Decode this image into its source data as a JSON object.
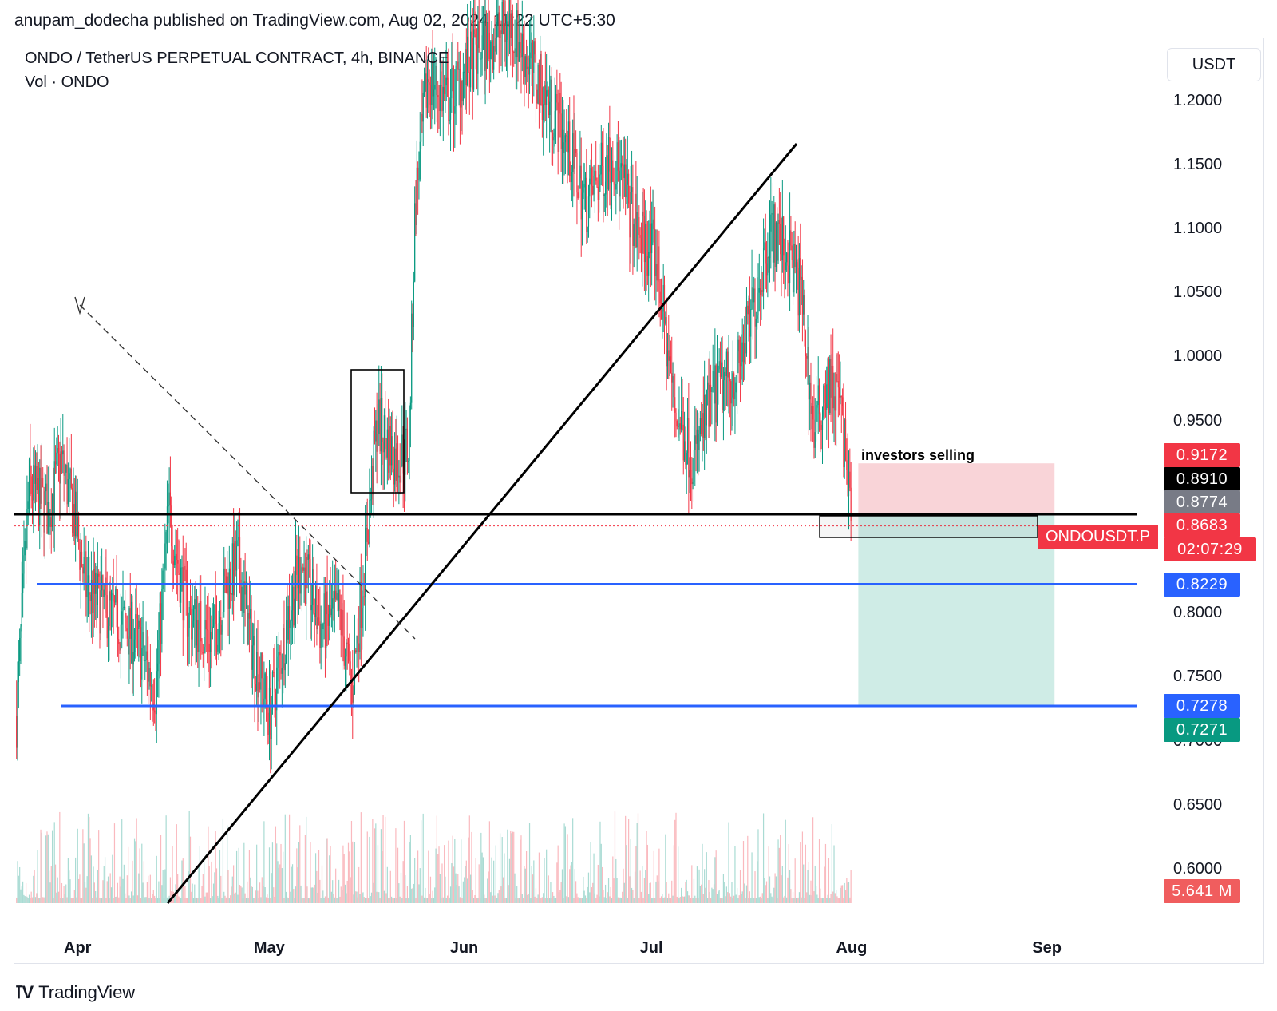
{
  "header": {
    "publish_line": "anupam_dodecha published on TradingView.com, Aug 02, 2024 11:22 UTC+5:30"
  },
  "legend": {
    "symbol_line": "ONDO / TetherUS PERPETUAL CONTRACT, 4h, BINANCE",
    "volume_line": "Vol · ONDO"
  },
  "currency_button": "USDT",
  "annotation": "investors selling",
  "symbol_tag": "ONDOUSDT.P",
  "footer": {
    "brand": "TradingView"
  },
  "colors": {
    "up": "#089981",
    "down": "#f23645",
    "level_blue": "#2962ff",
    "stop_zone": "#f7c5cb",
    "target_zone": "#bfe6dd"
  },
  "chart_data": {
    "type": "candlestick",
    "title": "ONDO / TetherUS PERPETUAL CONTRACT, 4h, BINANCE",
    "x_ticks": [
      "Apr",
      "May",
      "Jun",
      "Jul",
      "Aug",
      "Sep"
    ],
    "y_ticks": [
      1.2,
      1.15,
      1.1,
      1.05,
      1.0,
      0.95,
      0.8,
      0.75,
      0.7,
      0.65,
      0.6
    ],
    "y_tick_labels": [
      "1.2000",
      "1.1500",
      "1.1000",
      "1.0500",
      "1.0000",
      "0.9500",
      "0.8000",
      "0.7500",
      "0.7000",
      "0.6500",
      "0.6000"
    ],
    "ylim": [
      0.575,
      1.25
    ],
    "scale_labels": [
      {
        "text": "0.9172",
        "color": "#f23645"
      },
      {
        "text": "0.8910",
        "color": "#000000"
      },
      {
        "text": "0.8774",
        "color": "#787b86"
      },
      {
        "text": "0.8683",
        "color": "#f23645",
        "countdown": "02:07:29"
      },
      {
        "text": "0.8229",
        "color": "#2962ff"
      },
      {
        "text": "0.7278",
        "color": "#2962ff"
      },
      {
        "text": "0.7271",
        "color": "#089981"
      },
      {
        "text": "5.641 M",
        "color": "#f05d5e"
      }
    ],
    "horizontal_levels": [
      0.8774,
      0.8229,
      0.7278
    ],
    "last_price": 0.8683,
    "short_position": {
      "entry": 0.8774,
      "stop": 0.9172,
      "target": 0.7271,
      "label": "investors selling"
    },
    "price_path": [
      [
        "2024-03-22",
        0.72
      ],
      [
        "2024-03-24",
        0.9
      ],
      [
        "2024-03-27",
        0.88
      ],
      [
        "2024-03-29",
        0.92
      ],
      [
        "2024-03-31",
        0.88
      ],
      [
        "2024-04-02",
        0.82
      ],
      [
        "2024-04-06",
        0.8
      ],
      [
        "2024-04-10",
        0.78
      ],
      [
        "2024-04-13",
        0.74
      ],
      [
        "2024-04-15",
        0.88
      ],
      [
        "2024-04-18",
        0.8
      ],
      [
        "2024-04-22",
        0.78
      ],
      [
        "2024-04-24",
        0.82
      ],
      [
        "2024-04-26",
        0.84
      ],
      [
        "2024-04-28",
        0.78
      ],
      [
        "2024-05-01",
        0.72
      ],
      [
        "2024-05-04",
        0.8
      ],
      [
        "2024-05-06",
        0.84
      ],
      [
        "2024-05-09",
        0.79
      ],
      [
        "2024-05-12",
        0.8
      ],
      [
        "2024-05-14",
        0.74
      ],
      [
        "2024-05-16",
        0.84
      ],
      [
        "2024-05-18",
        0.95
      ],
      [
        "2024-05-21",
        0.92
      ],
      [
        "2024-05-23",
        0.93
      ],
      [
        "2024-05-24",
        1.12
      ],
      [
        "2024-05-26",
        1.22
      ],
      [
        "2024-05-29",
        1.2
      ],
      [
        "2024-06-03",
        1.24
      ],
      [
        "2024-06-08",
        1.26
      ],
      [
        "2024-06-12",
        1.22
      ],
      [
        "2024-06-16",
        1.18
      ],
      [
        "2024-06-20",
        1.12
      ],
      [
        "2024-06-24",
        1.16
      ],
      [
        "2024-06-28",
        1.1
      ],
      [
        "2024-07-01",
        1.08
      ],
      [
        "2024-07-04",
        0.96
      ],
      [
        "2024-07-07",
        0.92
      ],
      [
        "2024-07-10",
        0.97
      ],
      [
        "2024-07-14",
        0.99
      ],
      [
        "2024-07-17",
        1.05
      ],
      [
        "2024-07-19",
        1.1
      ],
      [
        "2024-07-22",
        1.08
      ],
      [
        "2024-07-24",
        1.05
      ],
      [
        "2024-07-26",
        0.94
      ],
      [
        "2024-07-28",
        0.98
      ],
      [
        "2024-07-30",
        0.97
      ],
      [
        "2024-08-01",
        0.87
      ]
    ],
    "volume_peak": "5.641 M"
  }
}
